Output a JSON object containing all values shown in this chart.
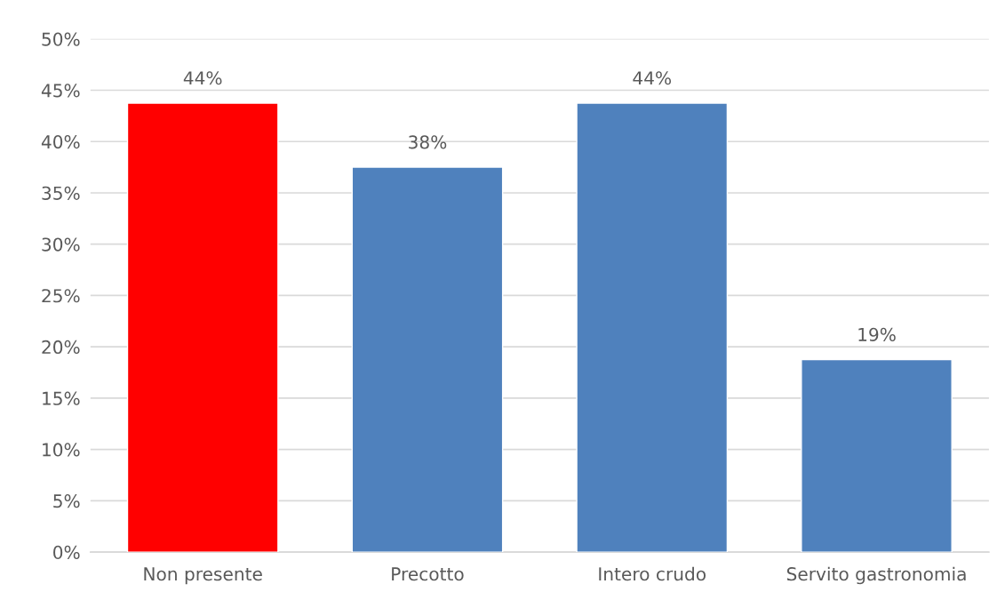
{
  "chart_data": {
    "type": "bar",
    "categories": [
      "Non presente",
      "Precotto",
      "Intero crudo",
      "Servito gastronomia"
    ],
    "values": [
      43.75,
      37.5,
      43.75,
      18.75
    ],
    "colors": [
      "#ff0000",
      "#4f81bd",
      "#4f81bd",
      "#4f81bd"
    ],
    "value_labels": [
      "44%",
      "38%",
      "44%",
      "19%"
    ],
    "ylim": [
      0,
      50
    ],
    "yticks": [
      {
        "value": 0,
        "label": "0%"
      },
      {
        "value": 5,
        "label": "5%"
      },
      {
        "value": 10,
        "label": "10%"
      },
      {
        "value": 15,
        "label": "15%"
      },
      {
        "value": 20,
        "label": "20%"
      },
      {
        "value": 25,
        "label": "25%"
      },
      {
        "value": 30,
        "label": "30%"
      },
      {
        "value": 35,
        "label": "35%"
      },
      {
        "value": 40,
        "label": "40%"
      },
      {
        "value": 45,
        "label": "45%"
      },
      {
        "value": 50,
        "label": "50%"
      }
    ],
    "grid": "y",
    "legend": false
  }
}
